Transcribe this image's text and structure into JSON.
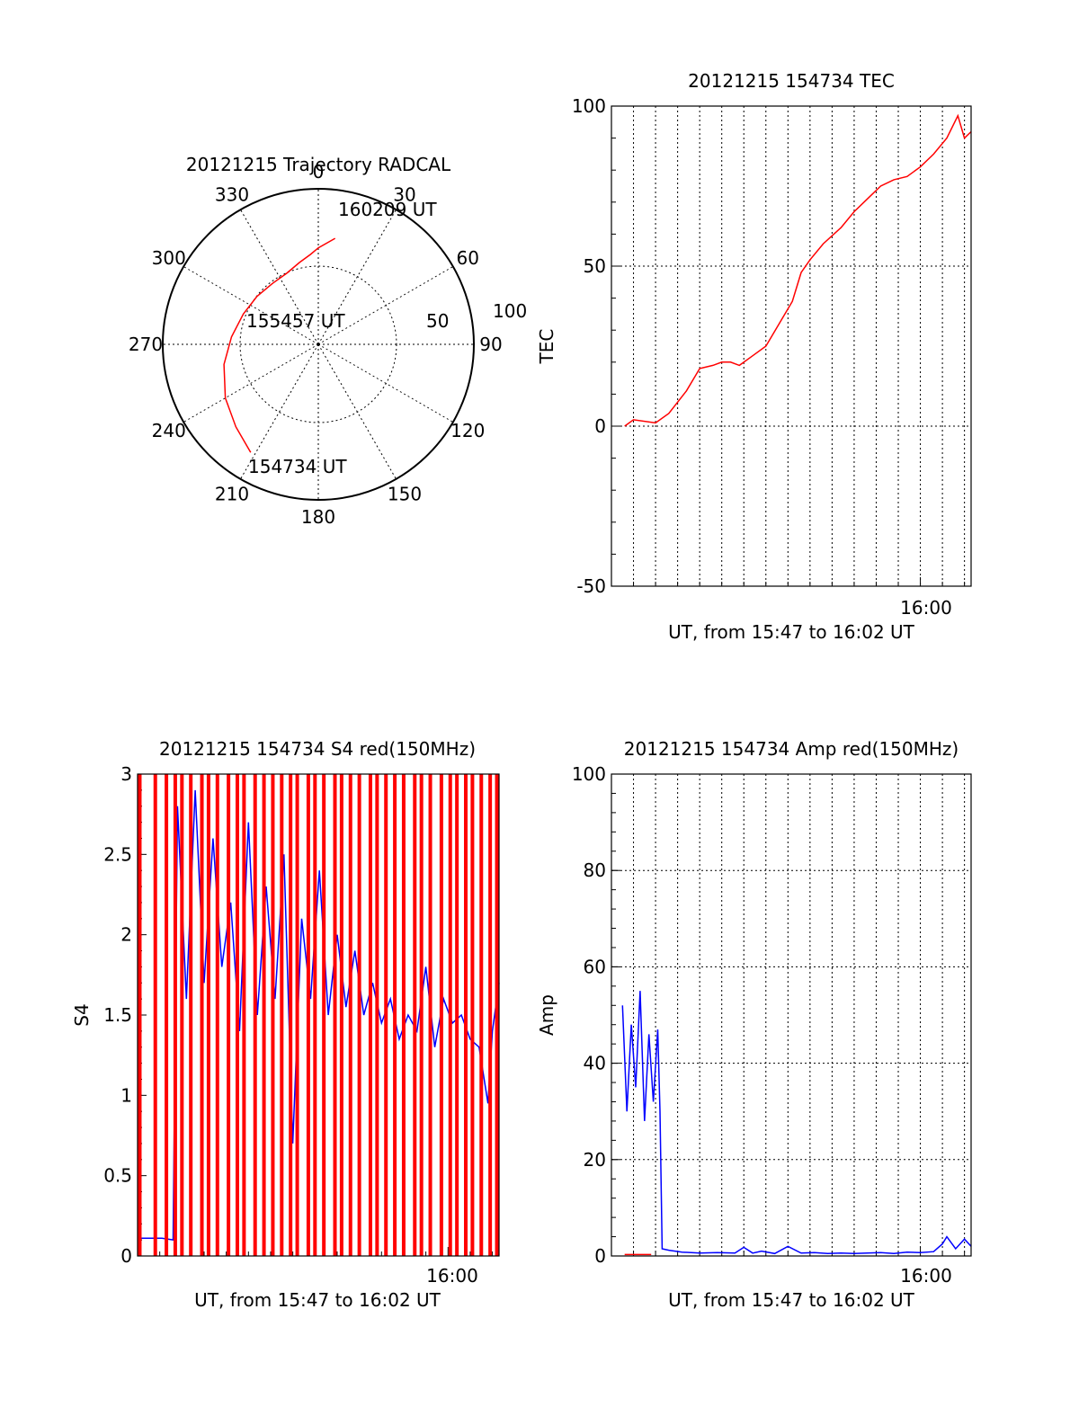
{
  "chart_data": [
    {
      "id": "trajectory",
      "type": "polar",
      "title": "20121215 Trajectory RADCAL",
      "angle_labels": [
        "0",
        "30",
        "60",
        "90",
        "120",
        "150",
        "180",
        "210",
        "240",
        "270",
        "300",
        "330"
      ],
      "radius_labels": [
        "50",
        "100"
      ],
      "radial_range": [
        0,
        100
      ],
      "series": [
        {
          "color": "#ff0000",
          "points": [
            {
              "az": 212,
              "el": 18
            },
            {
              "az": 225,
              "el": 25
            },
            {
              "az": 240,
              "el": 31
            },
            {
              "az": 258,
              "el": 38
            },
            {
              "az": 275,
              "el": 44
            },
            {
              "az": 292,
              "el": 48
            },
            {
              "az": 308,
              "el": 50
            },
            {
              "az": 323,
              "el": 51
            },
            {
              "az": 336,
              "el": 50
            },
            {
              "az": 347,
              "el": 46
            },
            {
              "az": 355,
              "el": 42
            },
            {
              "az": 360,
              "el": 38
            },
            {
              "az": 369,
              "el": 31
            }
          ]
        }
      ],
      "point_labels": [
        "154734 UT",
        "155457 UT",
        "160209 UT"
      ]
    },
    {
      "id": "tec",
      "type": "line",
      "title": "20121215 154734 TEC",
      "xlabel": "UT, from 15:47 to 16:02 UT",
      "ylabel": "TEC",
      "xlim": [
        46,
        62.3
      ],
      "ylim": [
        -50,
        100
      ],
      "yticks": [
        -50,
        0,
        50,
        100
      ],
      "xtick_label": "16:00",
      "grid": "dotted",
      "series": [
        {
          "color": "#ff0000",
          "x": [
            46.6,
            47.0,
            48.0,
            48.6,
            49.4,
            50.0,
            50.6,
            51.0,
            51.4,
            51.8,
            52.4,
            53.0,
            53.6,
            54.2,
            54.6,
            55.0,
            55.6,
            56.4,
            57.0,
            57.6,
            58.2,
            58.8,
            59.4,
            60.0,
            60.6,
            61.2,
            61.7,
            62.0,
            62.3
          ],
          "y": [
            0,
            2,
            1,
            4,
            11,
            18,
            19,
            20,
            20,
            19,
            22,
            25,
            32,
            39,
            48,
            52,
            57,
            62,
            67,
            71,
            75,
            77,
            78,
            81,
            85,
            90,
            97,
            90,
            92
          ]
        }
      ]
    },
    {
      "id": "s4",
      "type": "line",
      "title": "20121215 154734 S4 red(150MHz)",
      "xlabel": "UT, from 15:47 to 16:02 UT",
      "ylabel": "S4",
      "xlim": [
        46,
        62.3
      ],
      "ylim": [
        0,
        3
      ],
      "yticks": [
        "0",
        "0.5",
        "1",
        "1.5",
        "2",
        "2.5",
        "3"
      ],
      "xtick_label": "16:00",
      "series": [
        {
          "color": "#0000ff",
          "x": [
            46.1,
            46.6,
            47.1,
            47.6,
            47.8,
            48.2,
            48.6,
            49.0,
            49.4,
            49.8,
            50.2,
            50.6,
            51.0,
            51.4,
            51.8,
            52.2,
            52.6,
            53.0,
            53.4,
            53.8,
            54.2,
            54.6,
            55.0,
            55.4,
            55.8,
            56.2,
            56.6,
            57.0,
            57.4,
            57.8,
            58.2,
            58.6,
            59.0,
            59.4,
            59.8,
            60.2,
            60.6,
            61.0,
            61.4,
            61.8,
            62.0,
            62.3
          ],
          "y": [
            0.11,
            0.11,
            0.11,
            0.1,
            2.8,
            1.6,
            2.9,
            1.7,
            2.6,
            1.8,
            2.2,
            1.4,
            2.7,
            1.5,
            2.3,
            1.6,
            2.5,
            0.7,
            2.1,
            1.6,
            2.4,
            1.5,
            2.0,
            1.55,
            1.9,
            1.5,
            1.7,
            1.45,
            1.6,
            1.35,
            1.5,
            1.4,
            1.8,
            1.3,
            1.6,
            1.45,
            1.5,
            1.35,
            1.3,
            0.95,
            1.4,
            1.7
          ]
        },
        {
          "color": "#ff0000",
          "x": [
            46.1,
            46.8,
            47.3,
            47.7,
            48.0,
            48.4,
            48.9,
            49.2,
            49.6,
            50.1,
            50.5,
            50.8,
            51.3,
            51.7,
            52.1,
            52.5,
            52.9,
            53.2,
            53.7,
            54.0,
            54.4,
            54.9,
            55.2,
            55.6,
            56.0,
            56.5,
            56.8,
            57.2,
            57.6,
            58.0,
            58.5,
            58.8,
            59.2,
            59.7,
            60.1,
            60.4,
            60.8,
            61.1,
            61.5,
            61.9,
            62.2
          ],
          "y": [
            3,
            3,
            3,
            3,
            3,
            3,
            3,
            3,
            3,
            3,
            3,
            3,
            3,
            3,
            3,
            3,
            3,
            3,
            3,
            3,
            3,
            3,
            3,
            3,
            3,
            3,
            3,
            3,
            3,
            3,
            3,
            3,
            3,
            3,
            3,
            3,
            3,
            3,
            3,
            3,
            3
          ]
        }
      ]
    },
    {
      "id": "amp",
      "type": "line",
      "title": "20121215 154734 Amp red(150MHz)",
      "xlabel": "UT, from 15:47 to 16:02 UT",
      "ylabel": "Amp",
      "xlim": [
        46,
        62.3
      ],
      "ylim": [
        0,
        100
      ],
      "yticks": [
        0,
        20,
        40,
        60,
        80,
        100
      ],
      "xtick_label": "16:00",
      "grid": "dotted",
      "series": [
        {
          "color": "#0000ff",
          "x": [
            46.5,
            46.7,
            46.9,
            47.1,
            47.3,
            47.5,
            47.7,
            47.9,
            48.1,
            48.2,
            48.3,
            48.6,
            49.2,
            50.0,
            50.8,
            51.6,
            52.0,
            52.4,
            52.8,
            53.4,
            54.0,
            54.6,
            55.2,
            55.8,
            56.4,
            57.0,
            57.6,
            58.2,
            58.8,
            59.4,
            60.0,
            60.6,
            61.0,
            61.2,
            61.6,
            62.0,
            62.3
          ],
          "y": [
            52,
            30,
            48,
            35,
            55,
            28,
            46,
            32,
            47,
            30,
            1.5,
            1.2,
            0.8,
            0.6,
            0.7,
            0.6,
            1.8,
            0.6,
            1.0,
            0.5,
            2.0,
            0.6,
            0.7,
            0.5,
            0.6,
            0.5,
            0.6,
            0.7,
            0.5,
            0.8,
            0.7,
            0.9,
            2.5,
            4.0,
            1.5,
            3.5,
            2.0
          ]
        },
        {
          "color": "#ff0000",
          "x": [
            46.6,
            47.8
          ],
          "y": [
            0.3,
            0.3
          ]
        }
      ]
    }
  ]
}
